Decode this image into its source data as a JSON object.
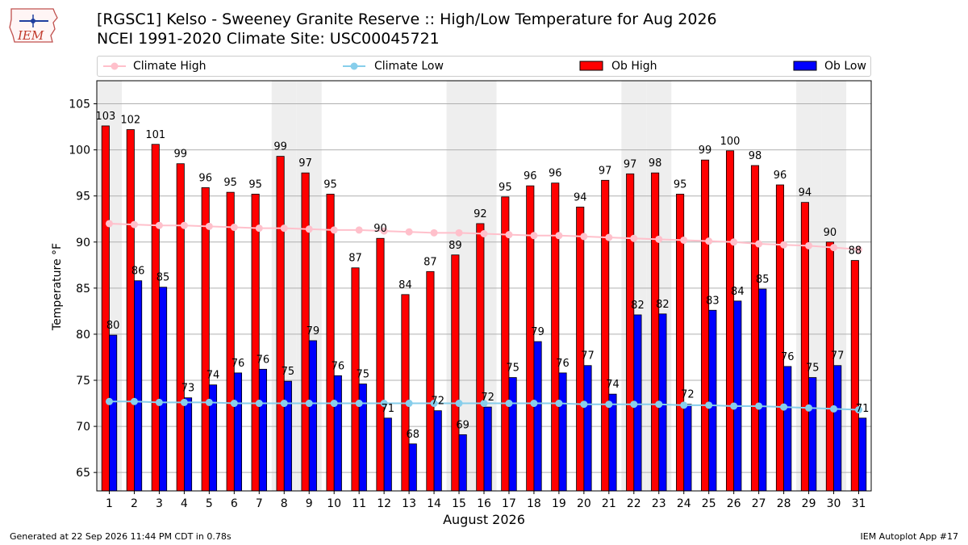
{
  "header": {
    "title": "[RGSC1] Kelso - Sweeney Granite Reserve :: High/Low Temperature for Aug 2026",
    "subtitle": "NCEI 1991-2020 Climate Site: USC00045721"
  },
  "logo": {
    "text": "IEM",
    "icon": "iowa-map-logo"
  },
  "legend": {
    "placement": "top",
    "items": [
      {
        "label": "Climate High",
        "type": "line",
        "color": "#ffc0cb"
      },
      {
        "label": "Climate Low",
        "type": "line",
        "color": "#87ceeb"
      },
      {
        "label": "Ob High",
        "type": "bar",
        "color": "#ff0000"
      },
      {
        "label": "Ob Low",
        "type": "bar",
        "color": "#0000ff"
      }
    ]
  },
  "footer": {
    "generated": "Generated at 22 Sep 2026 11:44 PM CDT in 0.78s",
    "app": "IEM Autoplot App #17"
  },
  "chart_data": {
    "type": "bar",
    "xlabel": "August 2026",
    "ylabel": "Temperature °F",
    "ylim": [
      63,
      107.5
    ],
    "yticks": [
      65,
      70,
      75,
      80,
      85,
      90,
      95,
      100,
      105
    ],
    "grid": true,
    "weekend_shading_days": [
      1,
      8,
      9,
      15,
      16,
      22,
      23,
      29,
      30
    ],
    "categories": [
      "1",
      "2",
      "3",
      "4",
      "5",
      "6",
      "7",
      "8",
      "9",
      "10",
      "11",
      "12",
      "13",
      "14",
      "15",
      "16",
      "17",
      "18",
      "19",
      "20",
      "21",
      "22",
      "23",
      "24",
      "25",
      "26",
      "27",
      "28",
      "29",
      "30",
      "31"
    ],
    "series": [
      {
        "name": "Ob High",
        "type": "bar",
        "color": "#ff0000",
        "values": [
          102.6,
          102.2,
          100.6,
          98.5,
          95.9,
          95.4,
          95.2,
          99.3,
          97.5,
          95.2,
          87.2,
          90.4,
          84.3,
          86.8,
          88.6,
          92.0,
          94.9,
          96.1,
          96.4,
          93.8,
          96.7,
          97.4,
          97.5,
          95.2,
          98.9,
          99.9,
          98.3,
          96.2,
          94.3,
          90.0,
          88.0
        ],
        "labels": [
          103,
          102,
          101,
          99,
          96,
          95,
          95,
          99,
          97,
          95,
          87,
          90,
          84,
          87,
          89,
          92,
          95,
          96,
          96,
          94,
          97,
          97,
          98,
          95,
          99,
          100,
          98,
          96,
          94,
          90,
          88
        ]
      },
      {
        "name": "Ob Low",
        "type": "bar",
        "color": "#0000ff",
        "values": [
          79.9,
          85.8,
          85.1,
          73.1,
          74.5,
          75.8,
          76.2,
          74.9,
          79.3,
          75.5,
          74.6,
          70.9,
          68.1,
          71.7,
          69.1,
          72.1,
          75.3,
          79.2,
          75.8,
          76.6,
          73.5,
          82.1,
          82.2,
          72.4,
          82.6,
          83.6,
          84.9,
          76.5,
          75.3,
          76.6,
          70.9
        ],
        "labels": [
          80,
          86,
          85,
          73,
          74,
          76,
          76,
          75,
          79,
          76,
          75,
          71,
          68,
          72,
          69,
          72,
          75,
          79,
          76,
          77,
          74,
          82,
          82,
          72,
          83,
          84,
          85,
          76,
          75,
          77,
          71
        ]
      },
      {
        "name": "Climate High",
        "type": "line",
        "color": "#ffc0cb",
        "values": [
          92.0,
          91.9,
          91.8,
          91.8,
          91.7,
          91.6,
          91.5,
          91.5,
          91.4,
          91.3,
          91.3,
          91.2,
          91.1,
          91.0,
          91.0,
          90.9,
          90.8,
          90.7,
          90.7,
          90.6,
          90.5,
          90.4,
          90.3,
          90.2,
          90.1,
          90.0,
          89.8,
          89.7,
          89.6,
          89.4,
          89.2
        ]
      },
      {
        "name": "Climate Low",
        "type": "line",
        "color": "#87ceeb",
        "values": [
          72.7,
          72.7,
          72.6,
          72.6,
          72.6,
          72.5,
          72.5,
          72.5,
          72.5,
          72.5,
          72.5,
          72.5,
          72.5,
          72.5,
          72.5,
          72.5,
          72.5,
          72.5,
          72.5,
          72.4,
          72.4,
          72.4,
          72.4,
          72.3,
          72.3,
          72.2,
          72.2,
          72.1,
          72.0,
          71.9,
          71.8
        ]
      }
    ]
  }
}
